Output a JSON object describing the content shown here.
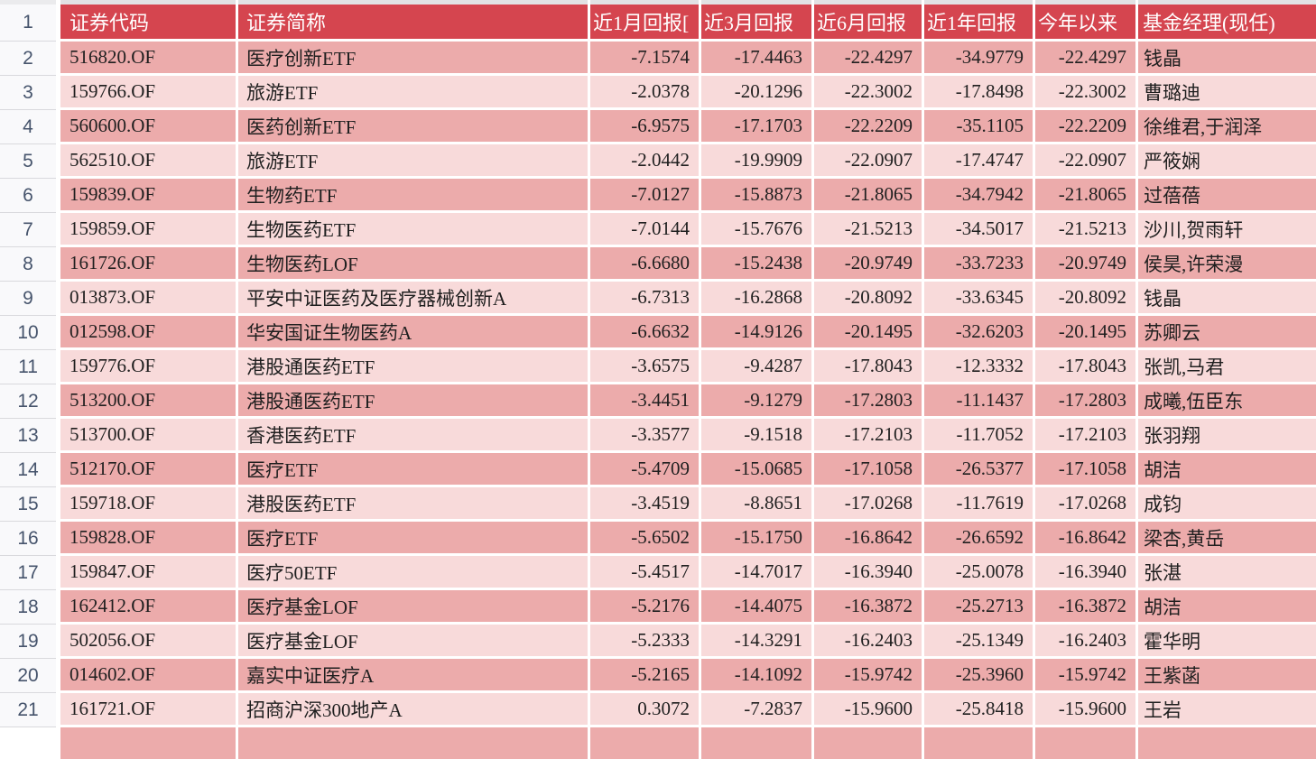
{
  "colors": {
    "header_bg": "#d5454f",
    "header_text": "#ffffff",
    "row_dark": "#ecabab",
    "row_light": "#f8dada",
    "gutter_text": "#46546c",
    "cell_text": "#1f1f1f"
  },
  "gutter": [
    "1",
    "2",
    "3",
    "4",
    "5",
    "6",
    "7",
    "8",
    "9",
    "10",
    "11",
    "12",
    "13",
    "14",
    "15",
    "16",
    "17",
    "18",
    "19",
    "20",
    "21"
  ],
  "table": {
    "headers": [
      {
        "key": "code",
        "label": "证券代码"
      },
      {
        "key": "name",
        "label": "证券简称"
      },
      {
        "key": "m1",
        "label": "近1月回报["
      },
      {
        "key": "m3",
        "label": "近3月回报"
      },
      {
        "key": "m6",
        "label": "近6月回报"
      },
      {
        "key": "y1",
        "label": "近1年回报"
      },
      {
        "key": "ytd",
        "label": "今年以来"
      },
      {
        "key": "manager",
        "label": "基金经理(现任)"
      }
    ],
    "rows": [
      {
        "shade": "dark",
        "code": "516820.OF",
        "name": "医疗创新ETF",
        "m1": "-7.1574",
        "m3": "-17.4463",
        "m6": "-22.4297",
        "y1": "-34.9779",
        "ytd": "-22.4297",
        "manager": "钱晶"
      },
      {
        "shade": "light",
        "code": "159766.OF",
        "name": "旅游ETF",
        "m1": "-2.0378",
        "m3": "-20.1296",
        "m6": "-22.3002",
        "y1": "-17.8498",
        "ytd": "-22.3002",
        "manager": "曹璐迪"
      },
      {
        "shade": "dark",
        "code": "560600.OF",
        "name": "医药创新ETF",
        "m1": "-6.9575",
        "m3": "-17.1703",
        "m6": "-22.2209",
        "y1": "-35.1105",
        "ytd": "-22.2209",
        "manager": "徐维君,于润泽"
      },
      {
        "shade": "light",
        "code": "562510.OF",
        "name": "旅游ETF",
        "m1": "-2.0442",
        "m3": "-19.9909",
        "m6": "-22.0907",
        "y1": "-17.4747",
        "ytd": "-22.0907",
        "manager": "严筱娴"
      },
      {
        "shade": "dark",
        "code": "159839.OF",
        "name": "生物药ETF",
        "m1": "-7.0127",
        "m3": "-15.8873",
        "m6": "-21.8065",
        "y1": "-34.7942",
        "ytd": "-21.8065",
        "manager": "过蓓蓓"
      },
      {
        "shade": "light",
        "code": "159859.OF",
        "name": "生物医药ETF",
        "m1": "-7.0144",
        "m3": "-15.7676",
        "m6": "-21.5213",
        "y1": "-34.5017",
        "ytd": "-21.5213",
        "manager": "沙川,贺雨轩"
      },
      {
        "shade": "dark",
        "code": "161726.OF",
        "name": "生物医药LOF",
        "m1": "-6.6680",
        "m3": "-15.2438",
        "m6": "-20.9749",
        "y1": "-33.7233",
        "ytd": "-20.9749",
        "manager": "侯昊,许荣漫"
      },
      {
        "shade": "light",
        "code": "013873.OF",
        "name": "平安中证医药及医疗器械创新A",
        "m1": "-6.7313",
        "m3": "-16.2868",
        "m6": "-20.8092",
        "y1": "-33.6345",
        "ytd": "-20.8092",
        "manager": "钱晶"
      },
      {
        "shade": "dark",
        "code": "012598.OF",
        "name": "华安国证生物医药A",
        "m1": "-6.6632",
        "m3": "-14.9126",
        "m6": "-20.1495",
        "y1": "-32.6203",
        "ytd": "-20.1495",
        "manager": "苏卿云"
      },
      {
        "shade": "light",
        "code": "159776.OF",
        "name": "港股通医药ETF",
        "m1": "-3.6575",
        "m3": "-9.4287",
        "m6": "-17.8043",
        "y1": "-12.3332",
        "ytd": "-17.8043",
        "manager": "张凯,马君"
      },
      {
        "shade": "dark",
        "code": "513200.OF",
        "name": "港股通医药ETF",
        "m1": "-3.4451",
        "m3": "-9.1279",
        "m6": "-17.2803",
        "y1": "-11.1437",
        "ytd": "-17.2803",
        "manager": "成曦,伍臣东"
      },
      {
        "shade": "light",
        "code": "513700.OF",
        "name": "香港医药ETF",
        "m1": "-3.3577",
        "m3": "-9.1518",
        "m6": "-17.2103",
        "y1": "-11.7052",
        "ytd": "-17.2103",
        "manager": "张羽翔"
      },
      {
        "shade": "dark",
        "code": "512170.OF",
        "name": "医疗ETF",
        "m1": "-5.4709",
        "m3": "-15.0685",
        "m6": "-17.1058",
        "y1": "-26.5377",
        "ytd": "-17.1058",
        "manager": "胡洁"
      },
      {
        "shade": "light",
        "code": "159718.OF",
        "name": "港股医药ETF",
        "m1": "-3.4519",
        "m3": "-8.8651",
        "m6": "-17.0268",
        "y1": "-11.7619",
        "ytd": "-17.0268",
        "manager": "成钧"
      },
      {
        "shade": "dark",
        "code": "159828.OF",
        "name": "医疗ETF",
        "m1": "-5.6502",
        "m3": "-15.1750",
        "m6": "-16.8642",
        "y1": "-26.6592",
        "ytd": "-16.8642",
        "manager": "梁杏,黄岳"
      },
      {
        "shade": "light",
        "code": "159847.OF",
        "name": "医疗50ETF",
        "m1": "-5.4517",
        "m3": "-14.7017",
        "m6": "-16.3940",
        "y1": "-25.0078",
        "ytd": "-16.3940",
        "manager": "张湛"
      },
      {
        "shade": "dark",
        "code": "162412.OF",
        "name": "医疗基金LOF",
        "m1": "-5.2176",
        "m3": "-14.4075",
        "m6": "-16.3872",
        "y1": "-25.2713",
        "ytd": "-16.3872",
        "manager": "胡洁"
      },
      {
        "shade": "light",
        "code": "502056.OF",
        "name": "医疗基金LOF",
        "m1": "-5.2333",
        "m3": "-14.3291",
        "m6": "-16.2403",
        "y1": "-25.1349",
        "ytd": "-16.2403",
        "manager": "霍华明"
      },
      {
        "shade": "dark",
        "code": "014602.OF",
        "name": "嘉实中证医疗A",
        "m1": "-5.2165",
        "m3": "-14.1092",
        "m6": "-15.9742",
        "y1": "-25.3960",
        "ytd": "-15.9742",
        "manager": "王紫菡"
      },
      {
        "shade": "light",
        "code": "161721.OF",
        "name": "招商沪深300地产A",
        "m1": "0.3072",
        "m3": "-7.2837",
        "m6": "-15.9600",
        "y1": "-25.8418",
        "ytd": "-15.9600",
        "manager": "王岩"
      }
    ]
  }
}
